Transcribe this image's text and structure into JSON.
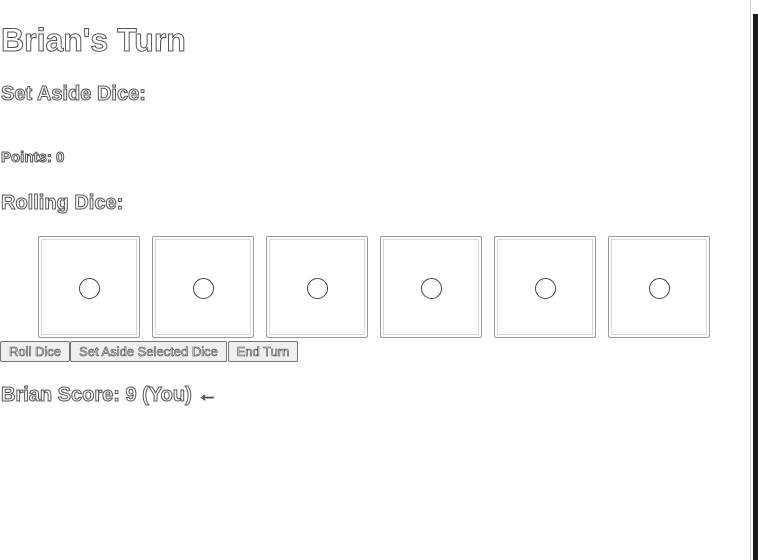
{
  "turn": {
    "title": "Brian's Turn"
  },
  "set_aside": {
    "heading": "Set Aside Dice:",
    "points_label": "Points: 0"
  },
  "rolling": {
    "heading": "Rolling Dice:",
    "dice": [
      {
        "value": 1,
        "pip": "○"
      },
      {
        "value": 1,
        "pip": "○"
      },
      {
        "value": 1,
        "pip": "○"
      },
      {
        "value": 1,
        "pip": "○"
      },
      {
        "value": 1,
        "pip": "○"
      },
      {
        "value": 1,
        "pip": "○"
      }
    ]
  },
  "actions": {
    "roll_label": "Roll Dice",
    "set_aside_label": "Set Aside Selected Dice",
    "end_turn_label": "End Turn"
  },
  "scoreboard": {
    "entries": [
      {
        "text": "Brian Score: 9 (You) ←"
      }
    ]
  },
  "colors": {
    "outline": "#555555",
    "die_border": "#9a9a9a",
    "button_bg": "#efefef"
  }
}
